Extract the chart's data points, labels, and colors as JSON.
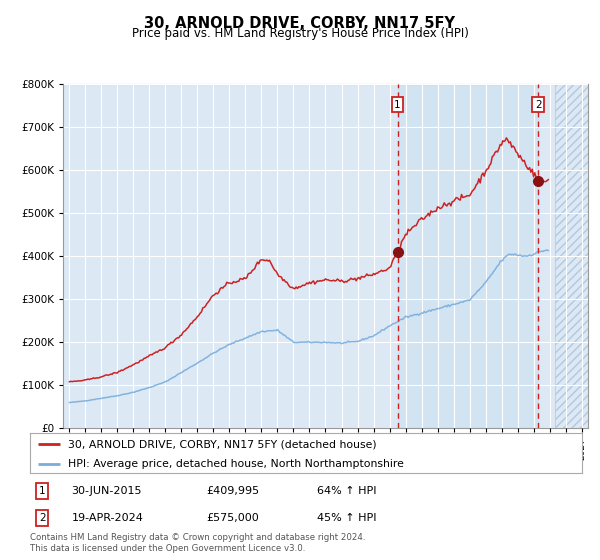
{
  "title": "30, ARNOLD DRIVE, CORBY, NN17 5FY",
  "subtitle": "Price paid vs. HM Land Registry's House Price Index (HPI)",
  "legend_line1": "30, ARNOLD DRIVE, CORBY, NN17 5FY (detached house)",
  "legend_line2": "HPI: Average price, detached house, North Northamptonshire",
  "annotation1_date": "30-JUN-2015",
  "annotation1_price": "£409,995",
  "annotation1_pct": "64% ↑ HPI",
  "annotation2_date": "19-APR-2024",
  "annotation2_price": "£575,000",
  "annotation2_pct": "45% ↑ HPI",
  "hpi_color": "#7aaddb",
  "price_color": "#cc2222",
  "dot_color": "#881111",
  "bg_color": "#dce9f5",
  "hatch_color": "#c8d8ea",
  "footer": "Contains HM Land Registry data © Crown copyright and database right 2024.\nThis data is licensed under the Open Government Licence v3.0.",
  "ylim": [
    0,
    800000
  ],
  "yticks": [
    0,
    100000,
    200000,
    300000,
    400000,
    500000,
    600000,
    700000,
    800000
  ],
  "xmin": 1994.6,
  "xmax": 2027.4,
  "sale1_x": 2015.5,
  "sale1_y": 409995,
  "sale2_x": 2024.3,
  "sale2_y": 575000,
  "shade_start": 2015.5,
  "shade_end": 2024.3,
  "hatch_start": 2025.33
}
